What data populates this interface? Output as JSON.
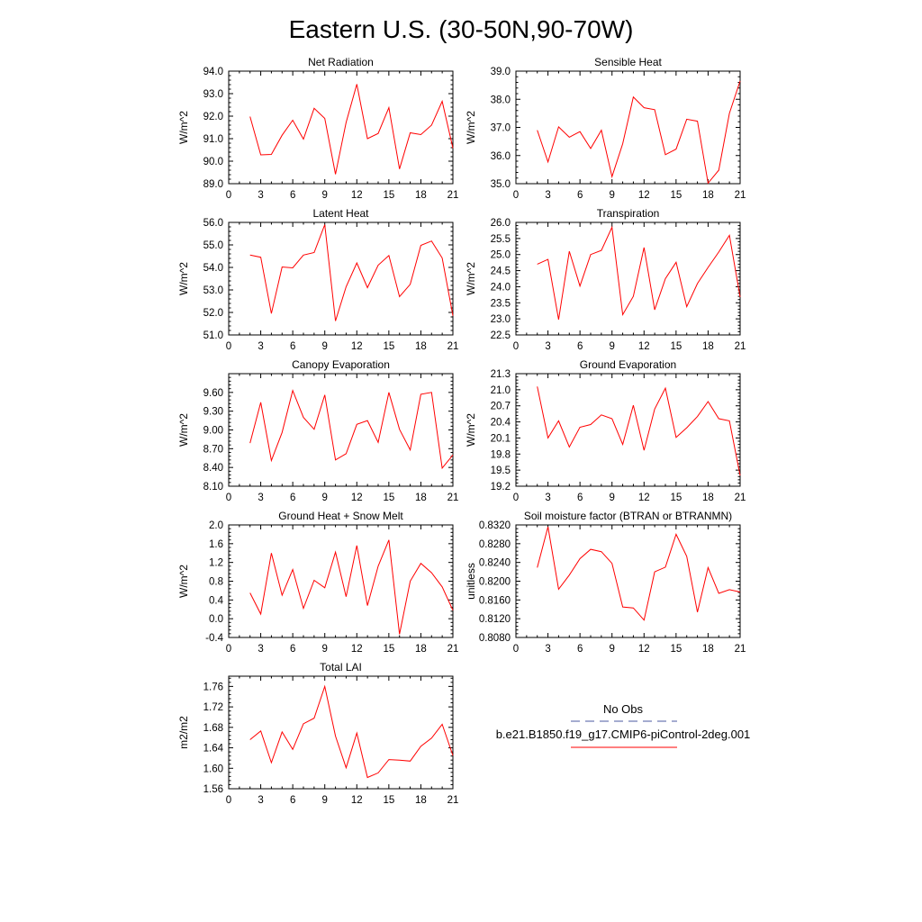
{
  "title": "Eastern U.S. (30-50N,90-70W)",
  "series_color": "#ff0000",
  "obs_color": "#4b5aa0",
  "legend": {
    "obs_label": "No Obs",
    "model_label": "b.e21.B1850.f19_g17.CMIP6-piControl-2deg.001"
  },
  "chart_data": [
    {
      "type": "line",
      "title": "Net Radiation",
      "ylabel": "W/m^2",
      "x": [
        2,
        3,
        4,
        5,
        6,
        7,
        8,
        9,
        10,
        11,
        12,
        13,
        14,
        15,
        16,
        17,
        18,
        19,
        20,
        21
      ],
      "values": [
        91.98,
        90.28,
        90.3,
        91.15,
        91.82,
        90.98,
        92.35,
        91.9,
        89.42,
        91.72,
        93.42,
        91.0,
        91.23,
        92.38,
        89.65,
        91.26,
        91.18,
        91.6,
        92.66,
        90.58
      ],
      "xlim": [
        0,
        21
      ],
      "xticks": [
        "0",
        "3",
        "6",
        "9",
        "12",
        "15",
        "18",
        "21"
      ],
      "ylim": [
        89.0,
        94.0
      ],
      "yticks": [
        "89.0",
        "90.0",
        "91.0",
        "92.0",
        "93.0",
        "94.0"
      ]
    },
    {
      "type": "line",
      "title": "Sensible Heat",
      "ylabel": "W/m^2",
      "x": [
        2,
        3,
        4,
        5,
        6,
        7,
        8,
        9,
        10,
        11,
        12,
        13,
        14,
        15,
        16,
        17,
        18,
        19,
        20,
        21
      ],
      "values": [
        36.9,
        35.77,
        37.02,
        36.65,
        36.85,
        36.25,
        36.9,
        35.25,
        36.42,
        38.08,
        37.7,
        37.63,
        36.03,
        36.23,
        37.29,
        37.22,
        35.02,
        35.48,
        37.5,
        38.65
      ],
      "xlim": [
        0,
        21
      ],
      "xticks": [
        "0",
        "3",
        "6",
        "9",
        "12",
        "15",
        "18",
        "21"
      ],
      "ylim": [
        35.0,
        39.0
      ],
      "yticks": [
        "35.0",
        "36.0",
        "37.0",
        "38.0",
        "39.0"
      ]
    },
    {
      "type": "line",
      "title": "Latent Heat",
      "ylabel": "W/m^2",
      "x": [
        2,
        3,
        4,
        5,
        6,
        7,
        8,
        9,
        10,
        11,
        12,
        13,
        14,
        15,
        16,
        17,
        18,
        19,
        20,
        21
      ],
      "values": [
        54.55,
        54.45,
        51.95,
        54.02,
        53.98,
        54.55,
        54.66,
        55.9,
        51.62,
        53.14,
        54.2,
        53.1,
        54.1,
        54.53,
        52.7,
        53.25,
        54.98,
        55.17,
        54.42,
        51.85
      ],
      "xlim": [
        0,
        21
      ],
      "xticks": [
        "0",
        "3",
        "6",
        "9",
        "12",
        "15",
        "18",
        "21"
      ],
      "ylim": [
        51.0,
        56.0
      ],
      "yticks": [
        "51.0",
        "52.0",
        "53.0",
        "54.0",
        "55.0",
        "56.0"
      ]
    },
    {
      "type": "line",
      "title": "Transpiration",
      "ylabel": "W/m^2",
      "x": [
        2,
        3,
        4,
        5,
        6,
        7,
        8,
        9,
        10,
        11,
        12,
        13,
        14,
        15,
        16,
        17,
        18,
        19,
        20,
        21
      ],
      "values": [
        24.7,
        24.85,
        22.98,
        25.1,
        24.02,
        25.0,
        25.13,
        25.85,
        23.13,
        23.7,
        25.22,
        23.28,
        24.25,
        24.76,
        23.38,
        24.1,
        24.6,
        25.08,
        25.6,
        23.68
      ],
      "xlim": [
        0,
        21
      ],
      "xticks": [
        "0",
        "3",
        "6",
        "9",
        "12",
        "15",
        "18",
        "21"
      ],
      "ylim": [
        22.5,
        26.0
      ],
      "yticks": [
        "22.5",
        "23.0",
        "23.5",
        "24.0",
        "24.5",
        "25.0",
        "25.5",
        "26.0"
      ]
    },
    {
      "type": "line",
      "title": "Canopy Evaporation",
      "ylabel": "W/m^2",
      "x": [
        2,
        3,
        4,
        5,
        6,
        7,
        8,
        9,
        10,
        11,
        12,
        13,
        14,
        15,
        16,
        17,
        18,
        19,
        20,
        21
      ],
      "values": [
        8.79,
        9.44,
        8.51,
        8.96,
        9.63,
        9.2,
        9.01,
        9.56,
        8.52,
        8.62,
        9.09,
        9.15,
        8.8,
        9.6,
        9.01,
        8.68,
        9.57,
        9.6,
        8.39,
        8.6
      ],
      "xlim": [
        0,
        21
      ],
      "xticks": [
        "0",
        "3",
        "6",
        "9",
        "12",
        "15",
        "18",
        "21"
      ],
      "ylim": [
        8.1,
        9.9
      ],
      "yticks": [
        "8.10",
        "8.40",
        "8.70",
        "9.00",
        "9.30",
        "9.60"
      ]
    },
    {
      "type": "line",
      "title": "Ground Evaporation",
      "ylabel": "W/m^2",
      "x": [
        2,
        3,
        4,
        5,
        6,
        7,
        8,
        9,
        10,
        11,
        12,
        13,
        14,
        15,
        16,
        17,
        18,
        19,
        20,
        21
      ],
      "values": [
        21.06,
        20.1,
        20.42,
        19.93,
        20.3,
        20.35,
        20.53,
        20.46,
        19.98,
        20.71,
        19.87,
        20.64,
        21.03,
        20.11,
        20.29,
        20.5,
        20.78,
        20.46,
        20.42,
        19.4
      ],
      "xlim": [
        0,
        21
      ],
      "xticks": [
        "0",
        "3",
        "6",
        "9",
        "12",
        "15",
        "18",
        "21"
      ],
      "ylim": [
        19.2,
        21.3
      ],
      "yticks": [
        "19.2",
        "19.5",
        "19.8",
        "20.1",
        "20.4",
        "20.7",
        "21.0",
        "21.3"
      ]
    },
    {
      "type": "line",
      "title": "Ground Heat + Snow Melt",
      "ylabel": "W/m^2",
      "x": [
        2,
        3,
        4,
        5,
        6,
        7,
        8,
        9,
        10,
        11,
        12,
        13,
        14,
        15,
        16,
        17,
        18,
        19,
        20,
        21
      ],
      "values": [
        0.55,
        0.1,
        1.4,
        0.5,
        1.05,
        0.22,
        0.82,
        0.66,
        1.42,
        0.47,
        1.56,
        0.28,
        1.12,
        1.68,
        -0.33,
        0.8,
        1.18,
        0.98,
        0.68,
        0.18
      ],
      "xlim": [
        0,
        21
      ],
      "xticks": [
        "0",
        "3",
        "6",
        "9",
        "12",
        "15",
        "18",
        "21"
      ],
      "ylim": [
        -0.4,
        2.0
      ],
      "yticks": [
        "-0.4",
        "0.0",
        "0.4",
        "0.8",
        "1.2",
        "1.6",
        "2.0"
      ]
    },
    {
      "type": "line",
      "title": "Soil moisture factor (BTRAN or BTRANMN)",
      "ylabel": "unitless",
      "x": [
        2,
        3,
        4,
        5,
        6,
        7,
        8,
        9,
        10,
        11,
        12,
        13,
        14,
        15,
        16,
        17,
        18,
        19,
        20,
        21
      ],
      "values": [
        0.8229,
        0.8316,
        0.8183,
        0.8213,
        0.8248,
        0.8268,
        0.8263,
        0.8238,
        0.8145,
        0.8143,
        0.8117,
        0.822,
        0.823,
        0.83,
        0.8253,
        0.8134,
        0.8229,
        0.8174,
        0.8182,
        0.8177
      ],
      "xlim": [
        0,
        21
      ],
      "xticks": [
        "0",
        "3",
        "6",
        "9",
        "12",
        "15",
        "18",
        "21"
      ],
      "ylim": [
        0.808,
        0.832
      ],
      "yticks": [
        "0.8080",
        "0.8120",
        "0.8160",
        "0.8200",
        "0.8240",
        "0.8280",
        "0.8320"
      ]
    },
    {
      "type": "line",
      "title": "Total LAI",
      "ylabel": "m2/m2",
      "x": [
        2,
        3,
        4,
        5,
        6,
        7,
        8,
        9,
        10,
        11,
        12,
        13,
        14,
        15,
        16,
        17,
        18,
        19,
        20,
        21
      ],
      "values": [
        1.656,
        1.673,
        1.611,
        1.671,
        1.637,
        1.687,
        1.698,
        1.76,
        1.663,
        1.601,
        1.669,
        1.582,
        1.591,
        1.617,
        1.616,
        1.614,
        1.643,
        1.659,
        1.686,
        1.625
      ],
      "xlim": [
        0,
        21
      ],
      "xticks": [
        "0",
        "3",
        "6",
        "9",
        "12",
        "15",
        "18",
        "21"
      ],
      "ylim": [
        1.56,
        1.78
      ],
      "yticks": [
        "1.56",
        "1.60",
        "1.64",
        "1.68",
        "1.72",
        "1.76"
      ]
    }
  ]
}
